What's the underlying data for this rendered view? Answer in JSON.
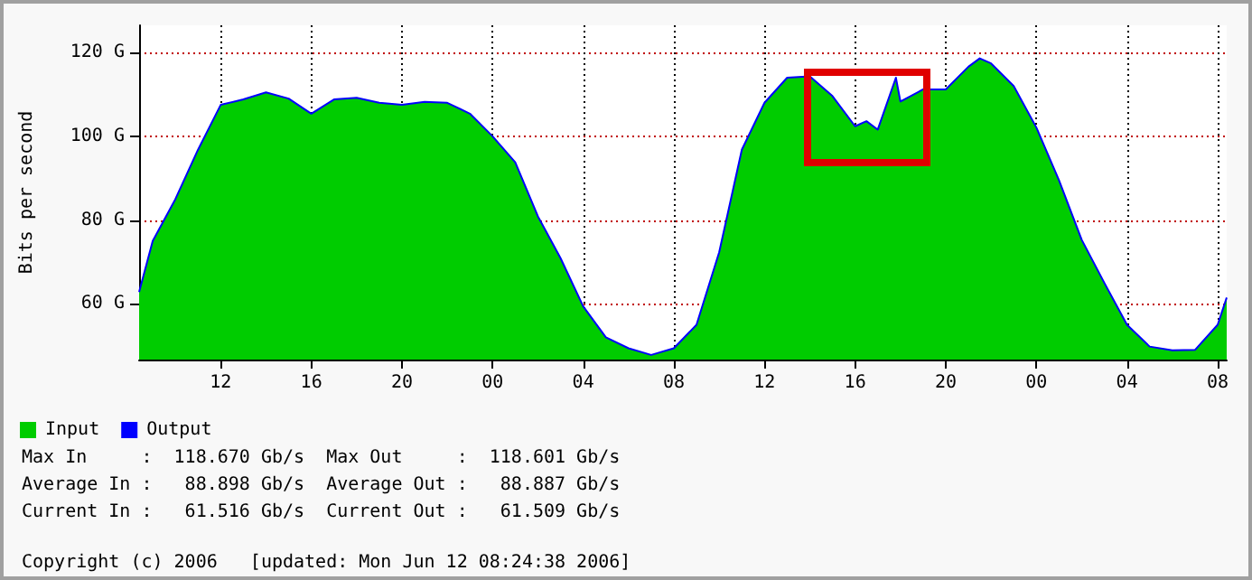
{
  "chart_data": {
    "type": "area",
    "ylabel": "Bits per second",
    "x": [
      "2006-06-10T08:24",
      "2006-06-10T09:00",
      "2006-06-10T10:00",
      "2006-06-10T11:00",
      "2006-06-10T12:00",
      "2006-06-10T13:00",
      "2006-06-10T14:00",
      "2006-06-10T15:00",
      "2006-06-10T16:00",
      "2006-06-10T17:00",
      "2006-06-10T18:00",
      "2006-06-10T19:00",
      "2006-06-10T20:00",
      "2006-06-10T21:00",
      "2006-06-10T22:00",
      "2006-06-10T23:00",
      "2006-06-11T00:00",
      "2006-06-11T01:00",
      "2006-06-11T02:00",
      "2006-06-11T03:00",
      "2006-06-11T04:00",
      "2006-06-11T05:00",
      "2006-06-11T06:00",
      "2006-06-11T07:00",
      "2006-06-11T08:00",
      "2006-06-11T09:00",
      "2006-06-11T10:00",
      "2006-06-11T11:00",
      "2006-06-11T12:00",
      "2006-06-11T13:00",
      "2006-06-11T14:00",
      "2006-06-11T15:00",
      "2006-06-11T16:00",
      "2006-06-11T16:30",
      "2006-06-11T17:00",
      "2006-06-11T17:48",
      "2006-06-11T18:00",
      "2006-06-11T19:00",
      "2006-06-11T20:00",
      "2006-06-11T21:00",
      "2006-06-11T21:30",
      "2006-06-11T22:00",
      "2006-06-11T23:00",
      "2006-06-12T00:00",
      "2006-06-12T01:00",
      "2006-06-12T02:00",
      "2006-06-12T03:00",
      "2006-06-12T04:00",
      "2006-06-12T05:00",
      "2006-06-12T06:00",
      "2006-06-12T07:00",
      "2006-06-12T08:00",
      "2006-06-12T08:24"
    ],
    "series": [
      {
        "name": "Input",
        "color": "#00cc00",
        "values": [
          62.8,
          75,
          85,
          96.8,
          107.5,
          108.8,
          110.5,
          109,
          105.4,
          108.8,
          109.2,
          108,
          107.5,
          108.2,
          108,
          105.4,
          100,
          93.8,
          80.9,
          70.9,
          59.4,
          52,
          49.4,
          47.8,
          49.4,
          55,
          72.3,
          96.8,
          108,
          114,
          114.3,
          109.6,
          102.4,
          103.6,
          101.6,
          114,
          108.3,
          111.2,
          111.2,
          116.6,
          118.6,
          117.4,
          112,
          102.1,
          89.5,
          75.3,
          65,
          55,
          49.8,
          48.9,
          49,
          55,
          61.5
        ]
      },
      {
        "name": "Output",
        "type": "line",
        "color": "#0000ff",
        "values": [
          62.8,
          75,
          85,
          96.8,
          107.5,
          108.8,
          110.5,
          109,
          105.4,
          108.8,
          109.2,
          108,
          107.5,
          108.2,
          108,
          105.4,
          100,
          93.8,
          80.9,
          70.9,
          59.4,
          52,
          49.4,
          47.8,
          49.4,
          55,
          72.3,
          96.8,
          108,
          114,
          114.3,
          109.6,
          102.4,
          103.6,
          101.6,
          114,
          108.3,
          111.2,
          111.2,
          116.6,
          118.6,
          117.4,
          112,
          102.1,
          89.5,
          75.3,
          65,
          55,
          49.8,
          48.9,
          49,
          55,
          61.5
        ]
      }
    ],
    "xlim": [
      "2006-06-10T08:24",
      "2006-06-12T08:24"
    ],
    "xticks": [
      {
        "value": "2006-06-10T12:00",
        "label": "12"
      },
      {
        "value": "2006-06-10T16:00",
        "label": "16"
      },
      {
        "value": "2006-06-10T20:00",
        "label": "20"
      },
      {
        "value": "2006-06-11T00:00",
        "label": "00"
      },
      {
        "value": "2006-06-11T04:00",
        "label": "04"
      },
      {
        "value": "2006-06-11T08:00",
        "label": "08"
      },
      {
        "value": "2006-06-11T12:00",
        "label": "12"
      },
      {
        "value": "2006-06-11T16:00",
        "label": "16"
      },
      {
        "value": "2006-06-11T20:00",
        "label": "20"
      },
      {
        "value": "2006-06-12T00:00",
        "label": "00"
      },
      {
        "value": "2006-06-12T04:00",
        "label": "04"
      },
      {
        "value": "2006-06-12T08:00",
        "label": "08"
      }
    ],
    "ylim": [
      46.7,
      126.5
    ],
    "yticks": [
      {
        "value": 60,
        "label": "60 G"
      },
      {
        "value": 80,
        "label": "80 G"
      },
      {
        "value": 100,
        "label": "100 G"
      },
      {
        "value": 120,
        "label": "120 G"
      }
    ],
    "grid": true,
    "legend": "bottom",
    "marker": "none",
    "annotations": [
      "Max In     :  118.670 Gb/s  Max Out     :  118.601 Gb/s",
      "Average In :   88.898 Gb/s  Average Out :   88.887 Gb/s",
      "Current In :   61.516 Gb/s  Current Out :   61.509 Gb/s",
      "Copyright (c) 2006   [updated: Mon Jun 12 08:24:38 2006]"
    ]
  }
}
